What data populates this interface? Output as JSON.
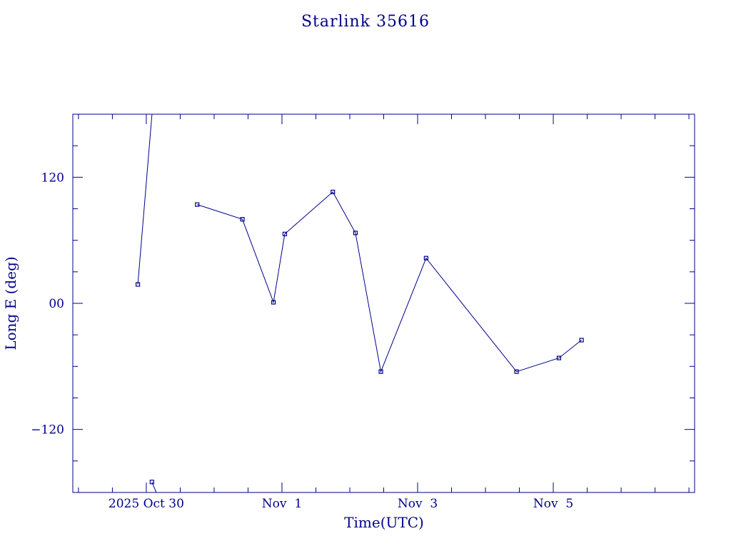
{
  "chart_data": {
    "type": "line",
    "title": "Starlink 35616",
    "xlabel": "Time(UTC)",
    "ylabel": "Long E (deg)",
    "color": "#00008b",
    "xlim": [
      "2025-10-28T22:00:00Z",
      "2025-11-07T02:00:00Z"
    ],
    "ylim": [
      -180,
      180
    ],
    "x_ticks": [
      {
        "t": "2025-10-30T00:00:00Z",
        "label": "2025 Oct 30"
      },
      {
        "t": "2025-11-01T00:00:00Z",
        "label": "Nov  1"
      },
      {
        "t": "2025-11-03T00:00:00Z",
        "label": "Nov  3"
      },
      {
        "t": "2025-11-05T00:00:00Z",
        "label": "Nov  5"
      }
    ],
    "x_minor_step_hours": 12,
    "y_ticks": [
      {
        "v": 120,
        "label": "120"
      },
      {
        "v": 0,
        "label": "00"
      },
      {
        "v": -120,
        "label": "−120"
      }
    ],
    "y_minor_step": 30,
    "grid": false,
    "legend": "none",
    "points": [
      {
        "t": "2025-10-29T21:00:00Z",
        "v": 18
      },
      {
        "t": "2025-10-30T02:00:00Z",
        "v": 181
      },
      {
        "t": "2025-10-30T02:00:00Z",
        "v": -170
      },
      {
        "t": "2025-10-30T18:00:00Z",
        "v": 94
      },
      {
        "t": "2025-10-31T10:00:00Z",
        "v": 80
      },
      {
        "t": "2025-10-31T21:00:00Z",
        "v": 1
      },
      {
        "t": "2025-11-01T01:00:00Z",
        "v": 66
      },
      {
        "t": "2025-11-01T18:00:00Z",
        "v": 106
      },
      {
        "t": "2025-11-02T02:00:00Z",
        "v": 67
      },
      {
        "t": "2025-11-02T11:00:00Z",
        "v": -65
      },
      {
        "t": "2025-11-03T03:00:00Z",
        "v": 43
      },
      {
        "t": "2025-11-04T11:00:00Z",
        "v": -65
      },
      {
        "t": "2025-11-05T02:00:00Z",
        "v": -52
      },
      {
        "t": "2025-11-05T10:00:00Z",
        "v": -35
      }
    ],
    "segments": [
      [
        0,
        1
      ],
      [
        3,
        4,
        5,
        6,
        7,
        8,
        9,
        10,
        11,
        12,
        13
      ]
    ]
  }
}
